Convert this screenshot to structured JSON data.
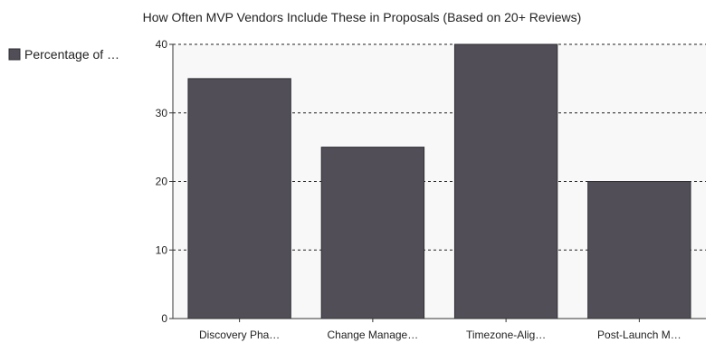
{
  "chart_data": {
    "type": "bar",
    "title": "How Often MVP Vendors Include These in Proposals (Based on 20+ Reviews)",
    "categories": [
      "Discovery Pha…",
      "Change Manage…",
      "Timezone-Alig…",
      "Post-Launch M…"
    ],
    "series": [
      {
        "name": "Percentage of …",
        "values": [
          35,
          25,
          40,
          20
        ]
      }
    ],
    "xlabel": "",
    "ylabel": "",
    "ylim": [
      0,
      40
    ],
    "yticks": [
      0,
      10,
      20,
      30,
      40
    ],
    "grid": true,
    "legend_position": "left",
    "colors": {
      "bar": "#514e57",
      "bar_stroke": "#2f2d33",
      "plot_bg": "#f8f8f8",
      "grid": "#222222",
      "axis": "#333333"
    }
  }
}
